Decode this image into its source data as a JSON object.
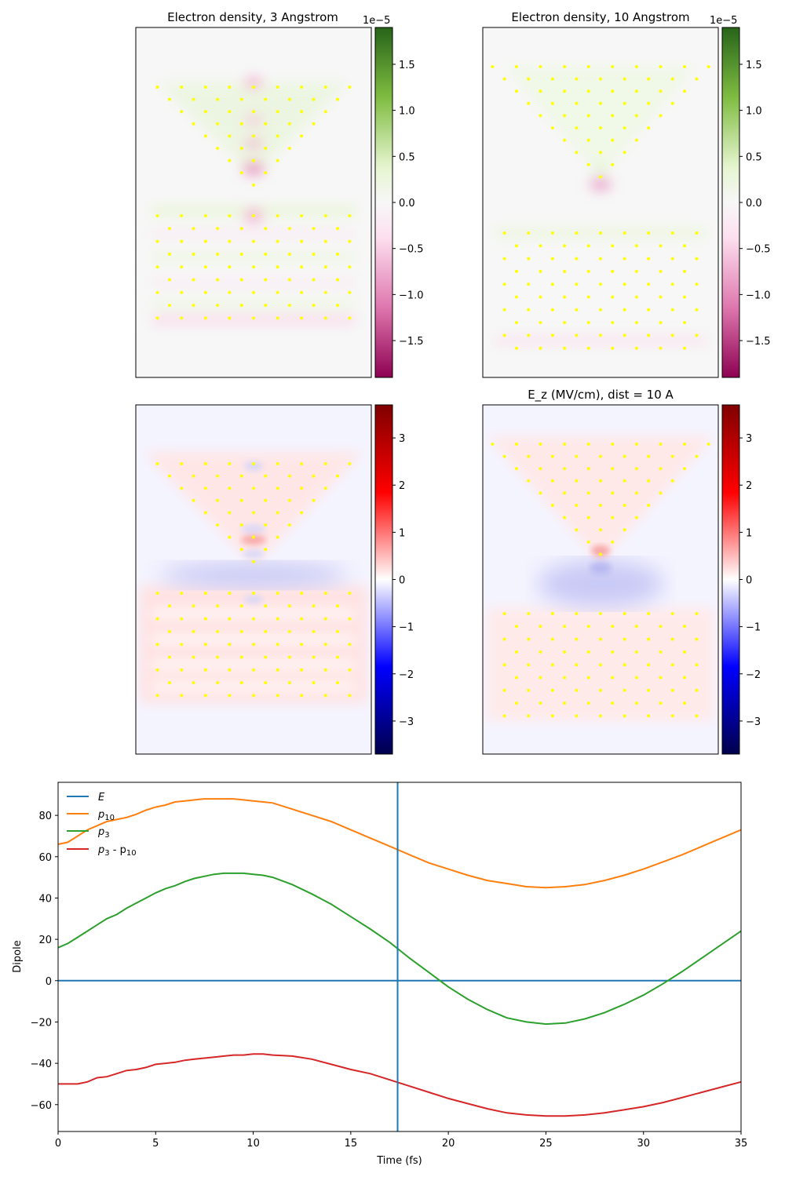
{
  "chart_data": [
    {
      "type": "heatmap",
      "title": "Electron density, 3 Angstrom",
      "colormap": "PiYG",
      "colorbar": {
        "exponent_label": "1e−5",
        "range": [
          -1.9,
          1.9
        ],
        "ticks": [
          1.5,
          1.0,
          0.5,
          0.0,
          -0.5,
          -1.0,
          -1.5
        ],
        "tick_labels": [
          "1.5",
          "1.0",
          "0.5",
          "0.0",
          "−0.5",
          "−1.0",
          "−1.5"
        ]
      },
      "atom_marker_color": "#ffff00",
      "structure": "triangular tip above slab, gap 3 Angstrom"
    },
    {
      "type": "heatmap",
      "title": "Electron density, 10 Angstrom",
      "colormap": "PiYG",
      "colorbar": {
        "exponent_label": "1e−5",
        "range": [
          -1.9,
          1.9
        ],
        "ticks": [
          1.5,
          1.0,
          0.5,
          0.0,
          -0.5,
          -1.0,
          -1.5
        ],
        "tick_labels": [
          "1.5",
          "1.0",
          "0.5",
          "0.0",
          "−0.5",
          "−1.0",
          "−1.5"
        ]
      },
      "atom_marker_color": "#ffff00",
      "structure": "triangular tip above slab, gap 10 Angstrom"
    },
    {
      "type": "heatmap",
      "title": "",
      "colormap": "seismic",
      "colorbar": {
        "range": [
          -3.7,
          3.7
        ],
        "ticks": [
          3,
          2,
          1,
          0,
          -1,
          -2,
          -3
        ],
        "tick_labels": [
          "3",
          "2",
          "1",
          "0",
          "−1",
          "−2",
          "−3"
        ]
      },
      "atom_marker_color": "#ffff00",
      "structure": "gap 3 Angstrom"
    },
    {
      "type": "heatmap",
      "title": "E_z (MV/cm), dist = 10 A",
      "colormap": "seismic",
      "colorbar": {
        "range": [
          -3.7,
          3.7
        ],
        "ticks": [
          3,
          2,
          1,
          0,
          -1,
          -2,
          -3
        ],
        "tick_labels": [
          "3",
          "2",
          "1",
          "0",
          "−1",
          "−2",
          "−3"
        ]
      },
      "atom_marker_color": "#ffff00",
      "structure": "gap 10 Angstrom"
    },
    {
      "type": "line",
      "title": "",
      "xlabel": "Time (fs)",
      "ylabel": "Dipole",
      "xlim": [
        0,
        35
      ],
      "ylim": [
        -73,
        96
      ],
      "xticks": [
        0,
        5,
        10,
        15,
        20,
        25,
        30,
        35
      ],
      "yticks": [
        -60,
        -40,
        -20,
        0,
        20,
        40,
        60,
        80
      ],
      "ytick_labels": [
        "−60",
        "−40",
        "−20",
        "0",
        "20",
        "40",
        "60",
        "80"
      ],
      "vline_x": 17.4,
      "legend_position": "upper left",
      "series": [
        {
          "name": "E",
          "color": "#1f77b4",
          "x": [
            0,
            35
          ],
          "y": [
            0,
            0
          ]
        },
        {
          "name": "p10",
          "color": "#ff7f0e",
          "x": [
            0,
            0.5,
            1,
            1.5,
            2,
            2.5,
            3,
            3.5,
            4,
            4.5,
            5,
            5.5,
            6,
            6.5,
            7,
            7.5,
            8,
            8.5,
            9,
            9.5,
            10,
            10.5,
            11,
            12,
            13,
            14,
            15,
            16,
            17,
            18,
            19,
            20,
            21,
            22,
            23,
            24,
            25,
            26,
            27,
            28,
            29,
            30,
            31,
            32,
            33,
            34,
            35
          ],
          "y": [
            66,
            67,
            70,
            73,
            75,
            77,
            78,
            79,
            80.5,
            82.5,
            84,
            85,
            86.5,
            87,
            87.5,
            88,
            88,
            88,
            88,
            87.5,
            87,
            86.5,
            86,
            83,
            80,
            77,
            73,
            69,
            65,
            61,
            57,
            54,
            51,
            48.5,
            47,
            45.5,
            45,
            45.5,
            46.5,
            48.5,
            51,
            54,
            57.5,
            61,
            65,
            69,
            73
          ]
        },
        {
          "name": "p3",
          "color": "#2ca02c",
          "x": [
            0,
            0.5,
            1,
            1.5,
            2,
            2.5,
            3,
            3.5,
            4,
            4.5,
            5,
            5.5,
            6,
            6.5,
            7,
            7.5,
            8,
            8.5,
            9,
            9.5,
            10,
            10.5,
            11,
            12,
            13,
            14,
            15,
            16,
            17,
            18,
            19,
            20,
            21,
            22,
            23,
            24,
            25,
            26,
            27,
            28,
            29,
            30,
            31,
            32,
            33,
            34,
            35
          ],
          "y": [
            16,
            18,
            21,
            24,
            27,
            30,
            32,
            35,
            37.5,
            40,
            42.5,
            44.5,
            46,
            48,
            49.5,
            50.5,
            51.5,
            52,
            52,
            52,
            51.5,
            51,
            50,
            46.5,
            42,
            37,
            31,
            25,
            18.5,
            11,
            4,
            -3,
            -9,
            -14,
            -18,
            -20,
            -21,
            -20.5,
            -18.5,
            -15.5,
            -11.5,
            -7,
            -1.5,
            4.5,
            11,
            17.5,
            24
          ]
        },
        {
          "name": "p3 - p10",
          "color": "#d62728",
          "x": [
            0,
            0.5,
            1,
            1.5,
            2,
            2.5,
            3,
            3.5,
            4,
            4.5,
            5,
            5.5,
            6,
            6.5,
            7,
            7.5,
            8,
            8.5,
            9,
            9.5,
            10,
            10.5,
            11,
            12,
            13,
            14,
            15,
            16,
            17,
            18,
            19,
            20,
            21,
            22,
            23,
            24,
            25,
            26,
            27,
            28,
            29,
            30,
            31,
            32,
            33,
            34,
            35
          ],
          "y": [
            -50,
            -50,
            -50,
            -49,
            -47,
            -46.5,
            -45,
            -43.5,
            -43,
            -42,
            -40.5,
            -40,
            -39.5,
            -38.5,
            -38,
            -37.5,
            -37,
            -36.5,
            -36,
            -36,
            -35.5,
            -35.5,
            -36,
            -36.5,
            -38,
            -40.5,
            -43,
            -45,
            -48,
            -51,
            -54,
            -57,
            -59.5,
            -62,
            -64,
            -65,
            -65.5,
            -65.5,
            -65,
            -64,
            -62.5,
            -61,
            -59,
            -56.5,
            -54,
            -51.5,
            -49
          ]
        }
      ]
    }
  ],
  "legend_labels": {
    "E": "E",
    "p10_base": "p",
    "p10_sub": "10",
    "p3_base": "p",
    "p3_sub": "3",
    "diff_a": "p",
    "diff_a_sub": "3",
    "diff_mid": " - p",
    "diff_b_sub": "10"
  }
}
